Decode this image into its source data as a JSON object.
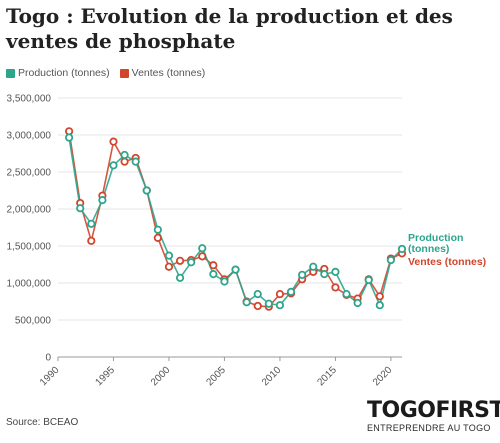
{
  "title": "Togo : Evolution de la production et des ventes de phosphate",
  "source": "Source: BCEAO",
  "logo": {
    "word": "TOGOFIRST",
    "tagline": "ENTREPRENDRE AU TOGO"
  },
  "colors": {
    "production": "#2ca58d",
    "ventes": "#d1452c",
    "grid": "#e6e6e6"
  },
  "chart_data": {
    "type": "line",
    "title": "Togo : Evolution de la production et des ventes de phosphate",
    "xlabel": "",
    "ylabel": "",
    "xlim": [
      1990,
      2021
    ],
    "ylim": [
      0,
      3500000
    ],
    "x_ticks": [
      1990,
      1995,
      2000,
      2005,
      2010,
      2015,
      2020
    ],
    "y_ticks": [
      "0",
      "500,000",
      "1,000,000",
      "1,500,000",
      "2,000,000",
      "2,500,000",
      "3,000,000",
      "3,500,000"
    ],
    "grid": true,
    "legend": "top-left",
    "x": [
      1991,
      1992,
      1993,
      1994,
      1995,
      1996,
      1997,
      1998,
      1999,
      2000,
      2001,
      2002,
      2003,
      2004,
      2005,
      2006,
      2007,
      2008,
      2009,
      2010,
      2011,
      2012,
      2013,
      2014,
      2015,
      2016,
      2017,
      2018,
      2019,
      2020,
      2021
    ],
    "series": [
      {
        "name": "Production (tonnes)",
        "end_label": "Production (tonnes)",
        "values": [
          2965000,
          2010000,
          1800000,
          2120000,
          2590000,
          2730000,
          2640000,
          2250000,
          1720000,
          1370000,
          1070000,
          1280000,
          1470000,
          1120000,
          1020000,
          1180000,
          740000,
          850000,
          720000,
          700000,
          880000,
          1110000,
          1220000,
          1120000,
          1150000,
          850000,
          730000,
          1040000,
          700000,
          1310000,
          1460000
        ]
      },
      {
        "name": "Ventes (tonnes)",
        "end_label": "Ventes (tonnes)",
        "values": [
          3050000,
          2080000,
          1570000,
          2180000,
          2910000,
          2640000,
          2690000,
          2250000,
          1610000,
          1220000,
          1300000,
          1310000,
          1360000,
          1240000,
          1050000,
          1180000,
          750000,
          690000,
          680000,
          850000,
          860000,
          1050000,
          1150000,
          1190000,
          940000,
          840000,
          790000,
          1050000,
          820000,
          1330000,
          1400000
        ]
      }
    ]
  }
}
